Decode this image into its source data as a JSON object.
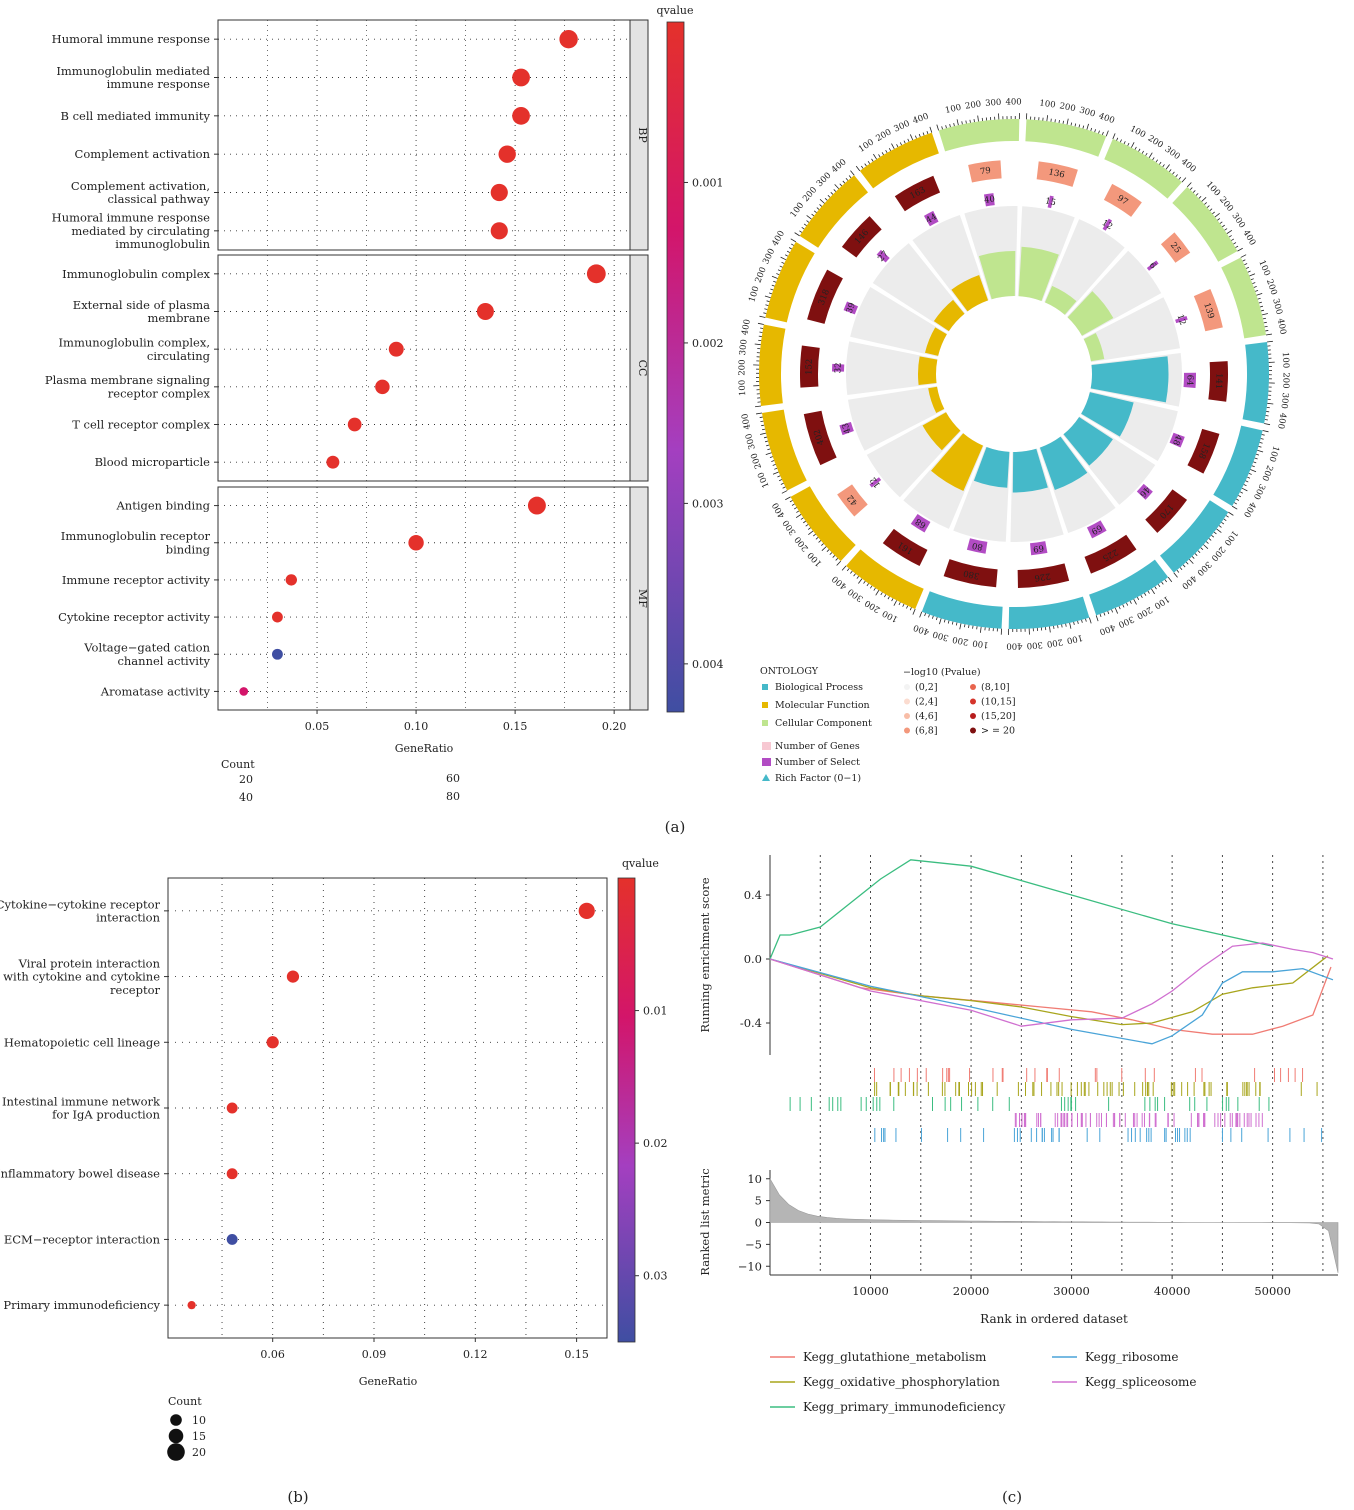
{
  "panels": {
    "a": "(a)",
    "b": "(b)",
    "c": "(c)"
  },
  "colors": {
    "red": "#e4312b",
    "blue": "#3f4ea2",
    "purple": "#a43fc0",
    "magenta": "#d3156a",
    "strip": "#e3e3e3",
    "bp": "#45b9c9",
    "mf": "#e6b800",
    "cc": "#bfe58f",
    "darkred": "#9d1b1b",
    "salmon": "#f4a57c",
    "violet": "#b24cc4",
    "grey": "#ececec"
  },
  "chart_data": [
    {
      "id": "a-dotplot",
      "type": "scatter",
      "title": "",
      "xlabel": "GeneRatio",
      "ylabel": "",
      "xlim": [
        0.0,
        0.208
      ],
      "xticks": [
        "0.05",
        "0.10",
        "0.15",
        "0.20"
      ],
      "xtick_values": [
        0.05,
        0.1,
        0.15,
        0.2
      ],
      "grid": true,
      "facets": [
        {
          "label": "BP",
          "terms": [
            {
              "label": "Humoral immune response",
              "x": 0.177,
              "count": 80,
              "color": "#e4312b"
            },
            {
              "label": "Immunoglobulin mediated immune response",
              "x": 0.153,
              "count": 72,
              "color": "#e4312b"
            },
            {
              "label": "B cell mediated immunity",
              "x": 0.153,
              "count": 72,
              "color": "#e4312b"
            },
            {
              "label": "Complement activation",
              "x": 0.146,
              "count": 68,
              "color": "#e4312b"
            },
            {
              "label": "Complement activation, classical pathway",
              "x": 0.142,
              "count": 66,
              "color": "#e4312b"
            },
            {
              "label": "Humoral immune response mediated by circulating immunoglobulin",
              "x": 0.142,
              "count": 66,
              "color": "#e4312b"
            }
          ]
        },
        {
          "label": "CC",
          "terms": [
            {
              "label": "Immunoglobulin complex",
              "x": 0.191,
              "count": 85,
              "color": "#e4312b"
            },
            {
              "label": "External side of plasma membrane",
              "x": 0.135,
              "count": 64,
              "color": "#e4312b"
            },
            {
              "label": "Immunoglobulin complex, circulating",
              "x": 0.09,
              "count": 44,
              "color": "#e4312b"
            },
            {
              "label": "Plasma membrane signaling receptor complex",
              "x": 0.083,
              "count": 40,
              "color": "#e4312b"
            },
            {
              "label": "T cell receptor complex",
              "x": 0.069,
              "count": 34,
              "color": "#e4312b"
            },
            {
              "label": "Blood microparticle",
              "x": 0.058,
              "count": 28,
              "color": "#e4312b"
            }
          ]
        },
        {
          "label": "MF",
          "terms": [
            {
              "label": "Antigen binding",
              "x": 0.161,
              "count": 74,
              "color": "#e4312b"
            },
            {
              "label": "Immunoglobulin receptor binding",
              "x": 0.1,
              "count": 48,
              "color": "#e4312b"
            },
            {
              "label": "Immune receptor activity",
              "x": 0.037,
              "count": 18,
              "color": "#e4312b"
            },
            {
              "label": "Cytokine receptor activity",
              "x": 0.03,
              "count": 15,
              "color": "#e4312b"
            },
            {
              "label": "Voltage−gated cation channel activity",
              "x": 0.03,
              "count": 15,
              "color": "#3f4ea2"
            },
            {
              "label": "Aromatase activity",
              "x": 0.013,
              "count": 6,
              "color": "#d3156a"
            }
          ]
        }
      ],
      "colorbar": {
        "title": "qvalue",
        "ticks": [
          "0.001",
          "0.002",
          "0.003",
          "0.004"
        ],
        "tick_values": [
          0.001,
          0.002,
          0.003,
          0.004
        ],
        "range": [
          0.0,
          0.0043
        ]
      },
      "size_legend": {
        "title": "Count",
        "values": [
          "20",
          "40",
          "60",
          "80"
        ]
      }
    },
    {
      "id": "a-circos",
      "type": "other",
      "title": "",
      "sectors": [
        {
          "ontology": "Cellular Component",
          "genes": 136,
          "select": 15,
          "rich": 0.55,
          "color": "#bfe58f"
        },
        {
          "ontology": "Cellular Component",
          "genes": 97,
          "select": 12,
          "rich": 0.2,
          "color": "#bfe58f"
        },
        {
          "ontology": "Cellular Component",
          "genes": 25,
          "select": 6,
          "rich": 0.4,
          "color": "#bfe58f"
        },
        {
          "ontology": "Cellular Component",
          "genes": 139,
          "select": 12,
          "rich": 0.15,
          "color": "#bfe58f"
        },
        {
          "ontology": "Biological Process",
          "genes": 141,
          "select": 64,
          "rich": 0.85,
          "color": "#45b9c9"
        },
        {
          "ontology": "Biological Process",
          "genes": 158,
          "select": 48,
          "rich": 0.5,
          "color": "#45b9c9"
        },
        {
          "ontology": "Biological Process",
          "genes": 170,
          "select": 46,
          "rich": 0.45,
          "color": "#45b9c9"
        },
        {
          "ontology": "Biological Process",
          "genes": 225,
          "select": 69,
          "rich": 0.5,
          "color": "#45b9c9"
        },
        {
          "ontology": "Biological Process",
          "genes": 226,
          "select": 69,
          "rich": 0.45,
          "color": "#45b9c9"
        },
        {
          "ontology": "Biological Process",
          "genes": 380,
          "select": 80,
          "rich": 0.4,
          "color": "#45b9c9"
        },
        {
          "ontology": "Molecular Function",
          "genes": 161,
          "select": 68,
          "rich": 0.55,
          "color": "#e6b800"
        },
        {
          "ontology": "Molecular Function",
          "genes": 42,
          "select": 12,
          "rich": 0.3,
          "color": "#e6b800"
        },
        {
          "ontology": "Molecular Function",
          "genes": 402,
          "select": 43,
          "rich": 0.1,
          "color": "#e6b800"
        },
        {
          "ontology": "Molecular Function",
          "genes": 152,
          "select": 32,
          "rich": 0.2,
          "color": "#e6b800"
        },
        {
          "ontology": "Molecular Function",
          "genes": 318,
          "select": 39,
          "rich": 0.15,
          "color": "#e6b800"
        },
        {
          "ontology": "Molecular Function",
          "genes": 146,
          "select": 27,
          "rich": 0.2,
          "color": "#e6b800"
        },
        {
          "ontology": "Molecular Function",
          "genes": 163,
          "select": 44,
          "rich": 0.3,
          "color": "#e6b800"
        },
        {
          "ontology": "Cellular Component",
          "genes": 79,
          "select": 40,
          "rich": 0.5,
          "color": "#bfe58f"
        }
      ],
      "ring_ticks": [
        "100",
        "200",
        "300",
        "400"
      ],
      "legend_ontology": {
        "title": "ONTOLOGY",
        "items": [
          "Biological Process",
          "Molecular Function",
          "Cellular Component"
        ],
        "colors": [
          "#45b9c9",
          "#e6b800",
          "#bfe58f"
        ]
      },
      "legend_bars": {
        "items": [
          "Number of Genes",
          "Number of Select",
          "Rich Factor (0−1)"
        ],
        "colors": [
          "#f7c8d2",
          "#b24cc4",
          "#45b9c9"
        ]
      },
      "legend_pvalue": {
        "title": "−log10 (Pvalue)",
        "items": [
          "(0,2]",
          "(2,4]",
          "(4,6]",
          "(6,8]",
          "(8,10]",
          "(10,15]",
          "(15,20]",
          "> = 20"
        ],
        "colors": [
          "#f3f3f3",
          "#fbdcd0",
          "#f8bda7",
          "#f3987c",
          "#e8644d",
          "#d5352b",
          "#b71c1c",
          "#7f1010"
        ]
      }
    },
    {
      "id": "b-kegg-dotplot",
      "type": "scatter",
      "title": "",
      "xlabel": "GeneRatio",
      "ylabel": "",
      "xlim": [
        0.029,
        0.159
      ],
      "xticks": [
        "0.06",
        "0.09",
        "0.12",
        "0.15"
      ],
      "xtick_values": [
        0.06,
        0.09,
        0.12,
        0.15
      ],
      "grid": true,
      "terms": [
        {
          "label": "Cytokine−cytokine receptor interaction",
          "x": 0.153,
          "count": 20,
          "color": "#e4312b"
        },
        {
          "label": "Viral protein interaction with cytokine and cytokine receptor",
          "x": 0.066,
          "count": 14,
          "color": "#e4312b"
        },
        {
          "label": "Hematopoietic cell lineage",
          "x": 0.06,
          "count": 14,
          "color": "#e4312b"
        },
        {
          "label": "Intestinal immune network for IgA production",
          "x": 0.048,
          "count": 12,
          "color": "#e4312b"
        },
        {
          "label": "Inflammatory bowel disease",
          "x": 0.048,
          "count": 12,
          "color": "#e4312b"
        },
        {
          "label": "ECM−receptor interaction",
          "x": 0.048,
          "count": 12,
          "color": "#3f4ea2"
        },
        {
          "label": "Primary immunodeficiency",
          "x": 0.036,
          "count": 8,
          "color": "#e4312b"
        }
      ],
      "colorbar": {
        "title": "qvalue",
        "ticks": [
          "0.01",
          "0.02",
          "0.03"
        ],
        "tick_values": [
          0.01,
          0.02,
          0.03
        ],
        "range": [
          0.0,
          0.035
        ]
      },
      "size_legend": {
        "title": "Count",
        "values": [
          "10",
          "15",
          "20"
        ]
      }
    },
    {
      "id": "c-gsea",
      "type": "line",
      "title": "",
      "xlabel": "Rank in ordered dataset",
      "ylabel": "Running enrichment score",
      "ylabel2": "Ranked list metric",
      "xlim": [
        0,
        56500
      ],
      "xticks": [
        "10000",
        "20000",
        "30000",
        "40000",
        "50000"
      ],
      "xtick_values": [
        10000,
        20000,
        30000,
        40000,
        50000
      ],
      "ylim": [
        -0.6,
        0.65
      ],
      "yticks": [
        "0.4",
        "0.0",
        "-0.4"
      ],
      "ytick_values": [
        0.4,
        0.0,
        -0.4
      ],
      "metric_ylim": [
        -12,
        12
      ],
      "metric_yticks": [
        "10",
        "5",
        "0",
        "−5",
        "−10"
      ],
      "metric_ytick_values": [
        10,
        5,
        0,
        -5,
        -10
      ],
      "grid": true,
      "legend_position": "bottom",
      "series": [
        {
          "name": "Kegg_glutathione_metabolism",
          "color": "#f07c74",
          "x": [
            0,
            9000,
            15000,
            22000,
            27000,
            32000,
            36000,
            40000,
            44000,
            48000,
            51000,
            54000,
            55800
          ],
          "y": [
            0,
            -0.18,
            -0.23,
            -0.27,
            -0.3,
            -0.33,
            -0.38,
            -0.44,
            -0.47,
            -0.47,
            -0.42,
            -0.35,
            -0.05
          ]
        },
        {
          "name": "Kegg_oxidative_phosphorylation",
          "color": "#a8a51c",
          "x": [
            0,
            10000,
            15000,
            20000,
            25000,
            30000,
            35000,
            38000,
            42000,
            45000,
            48000,
            52000,
            55500
          ],
          "y": [
            0,
            -0.18,
            -0.23,
            -0.26,
            -0.3,
            -0.36,
            -0.41,
            -0.4,
            -0.33,
            -0.22,
            -0.18,
            -0.15,
            0.02
          ]
        },
        {
          "name": "Kegg_primary_immunodeficiency",
          "color": "#3bbd80",
          "x": [
            0,
            1000,
            2000,
            5000,
            8000,
            11000,
            14000,
            20000,
            30000,
            40000,
            50000
          ],
          "y": [
            0,
            0.15,
            0.15,
            0.2,
            0.35,
            0.5,
            0.62,
            0.58,
            0.4,
            0.22,
            0.08
          ]
        },
        {
          "name": "Kegg_ribosome",
          "color": "#4aa4d8",
          "x": [
            0,
            10000,
            20000,
            30000,
            38000,
            40000,
            43000,
            45000,
            47000,
            50000,
            53000,
            56000
          ],
          "y": [
            0,
            -0.17,
            -0.3,
            -0.44,
            -0.53,
            -0.48,
            -0.35,
            -0.15,
            -0.08,
            -0.08,
            -0.06,
            -0.13
          ]
        },
        {
          "name": "Kegg_spliceosome",
          "color": "#d070d0",
          "x": [
            0,
            10000,
            20000,
            25000,
            30000,
            35000,
            38000,
            40000,
            43000,
            46000,
            49000,
            52000,
            54000,
            56000
          ],
          "y": [
            0,
            -0.2,
            -0.32,
            -0.42,
            -0.38,
            -0.37,
            -0.28,
            -0.2,
            -0.05,
            0.08,
            0.1,
            0.06,
            0.04,
            0.0
          ]
        }
      ]
    }
  ]
}
